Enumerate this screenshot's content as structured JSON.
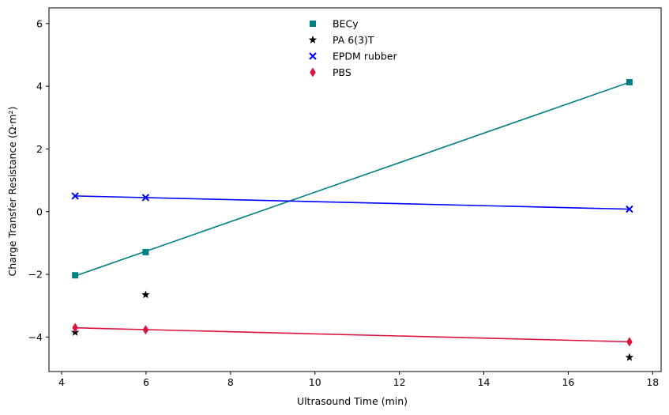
{
  "chart_data": {
    "type": "scatter",
    "xlabel": "Ultrasound Time (min)",
    "ylabel": "Charge Transfer Resistance (Ω·m²)",
    "xlim": [
      3.7,
      18.2
    ],
    "ylim": [
      -5.1,
      6.5
    ],
    "xticks": [
      4,
      6,
      8,
      10,
      12,
      14,
      16,
      18
    ],
    "yticks": [
      -4,
      -2,
      0,
      2,
      4,
      6
    ],
    "grid": false,
    "legend_position": "top-center",
    "series": [
      {
        "name": "BECy",
        "marker": "square",
        "color": "#008080",
        "x": [
          4.32,
          5.99,
          17.45
        ],
        "y": [
          -2.03,
          -1.29,
          4.13
        ],
        "fit_line": true
      },
      {
        "name": "PA 6(3)T",
        "marker": "star",
        "color": "#000000",
        "x": [
          4.32,
          5.99,
          17.45
        ],
        "y": [
          -3.85,
          -2.65,
          -4.65
        ],
        "fit_line": false
      },
      {
        "name": "EPDM rubber",
        "marker": "x",
        "color": "#0000ff",
        "x": [
          4.32,
          5.99,
          17.45
        ],
        "y": [
          0.5,
          0.45,
          0.08
        ],
        "fit_line": true
      },
      {
        "name": "PBS",
        "marker": "thin_diamond",
        "color": "#dc143c",
        "x": [
          4.32,
          5.99,
          17.45
        ],
        "y": [
          -3.7,
          -3.77,
          -4.15
        ],
        "fit_line": true
      }
    ]
  }
}
